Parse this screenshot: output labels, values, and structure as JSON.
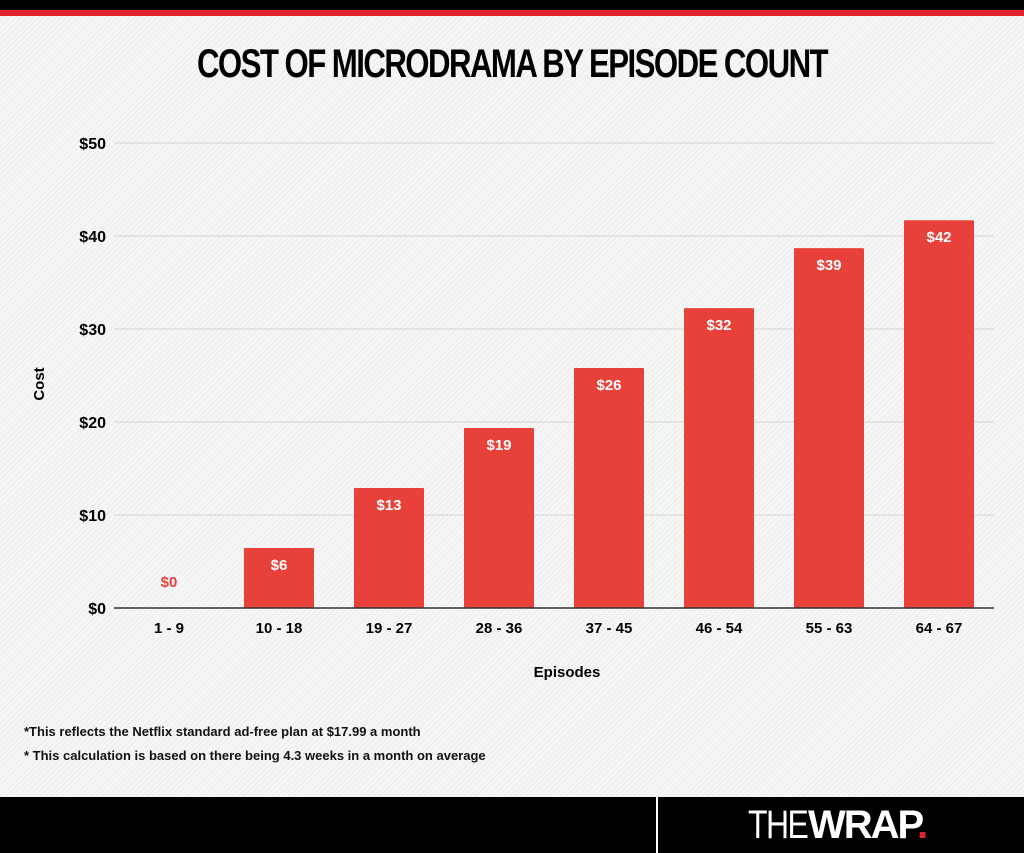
{
  "header": {
    "title": "COST OF MICRODRAMA BY EPISODE COUNT"
  },
  "chart_data": {
    "type": "bar",
    "title": "COST OF MICRODRAMA BY EPISODE COUNT",
    "xlabel": "Episodes",
    "ylabel": "Cost",
    "categories": [
      "1 - 9",
      "10 - 18",
      "19 - 27",
      "28 - 36",
      "37 - 45",
      "46 - 54",
      "55 - 63",
      "64 - 67"
    ],
    "values": [
      0,
      6.45,
      12.9,
      19.35,
      25.8,
      32.25,
      38.7,
      41.7
    ],
    "data_labels": [
      "$0",
      "$6",
      "$13",
      "$19",
      "$26",
      "$32",
      "$39",
      "$42"
    ],
    "ylim": [
      0,
      50
    ],
    "yticks": [
      0,
      10,
      20,
      30,
      40,
      50
    ],
    "ytick_labels": [
      "$0",
      "$10",
      "$20",
      "$30",
      "$40",
      "$50"
    ],
    "grid": true,
    "legend": "none",
    "bar_color": "#e8413a",
    "zero_label_color": "#e8413a"
  },
  "footnotes": [
    "*This reflects the Netflix standard ad-free plan at $17.99 a month",
    "* This calculation is based on there being 4.3 weeks in a month on average"
  ],
  "footer": {
    "logo_thin": "THE",
    "logo_bold": "WRAP",
    "logo_dot": "."
  }
}
